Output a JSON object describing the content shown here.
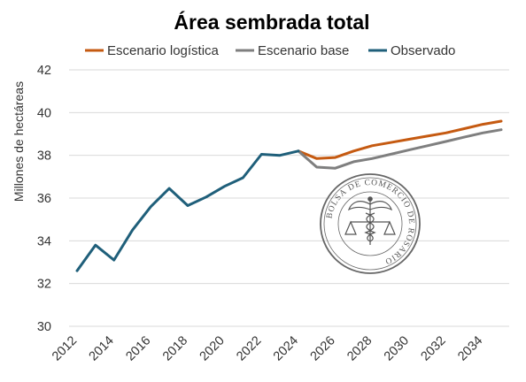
{
  "chart_data": {
    "type": "line",
    "title": "Área sembrada total",
    "ylabel": "Millones de hectáreas",
    "xlabel": "",
    "ylim": [
      30,
      42
    ],
    "yticks": [
      30,
      32,
      34,
      36,
      38,
      40,
      42
    ],
    "xlim": [
      2012,
      2035
    ],
    "xticks": [
      2012,
      2014,
      2016,
      2018,
      2020,
      2022,
      2024,
      2026,
      2028,
      2030,
      2032,
      2034
    ],
    "grid": "horizontal",
    "legend_position": "top",
    "series": [
      {
        "name": "Escenario logística",
        "color": "#c55a11",
        "x": [
          2024,
          2025,
          2026,
          2027,
          2028,
          2029,
          2030,
          2031,
          2032,
          2033,
          2034,
          2035
        ],
        "values": [
          38.2,
          37.85,
          37.9,
          38.2,
          38.45,
          38.6,
          38.75,
          38.9,
          39.05,
          39.25,
          39.45,
          39.6
        ]
      },
      {
        "name": "Escenario base",
        "color": "#7f7f7f",
        "x": [
          2024,
          2025,
          2026,
          2027,
          2028,
          2029,
          2030,
          2031,
          2032,
          2033,
          2034,
          2035
        ],
        "values": [
          38.2,
          37.45,
          37.4,
          37.7,
          37.85,
          38.05,
          38.25,
          38.45,
          38.65,
          38.85,
          39.05,
          39.2
        ]
      },
      {
        "name": "Observado",
        "color": "#1f5f7a",
        "x": [
          2012,
          2013,
          2014,
          2015,
          2016,
          2017,
          2018,
          2019,
          2020,
          2021,
          2022,
          2023,
          2024
        ],
        "values": [
          32.6,
          33.8,
          33.1,
          34.5,
          35.6,
          36.45,
          35.65,
          36.05,
          36.55,
          36.95,
          38.05,
          38.0,
          38.2
        ]
      }
    ]
  },
  "watermark": {
    "text": "BOLSA DE COMERCIO DE ROSARIO",
    "color": "#666666"
  }
}
